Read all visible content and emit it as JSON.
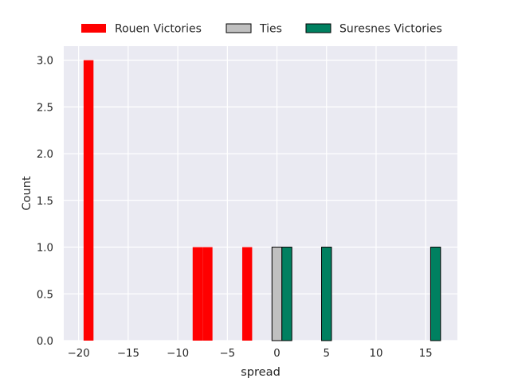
{
  "chart_data": {
    "type": "bar",
    "xlabel": "spread",
    "ylabel": "Count",
    "xlim": [
      -21.5,
      18.2
    ],
    "ylim": [
      0,
      3.15
    ],
    "x_ticks": [
      -20,
      -15,
      -10,
      -5,
      0,
      5,
      10,
      15
    ],
    "x_tick_labels": [
      "−20",
      "−15",
      "−10",
      "−5",
      "0",
      "5",
      "10",
      "15"
    ],
    "y_ticks": [
      0,
      0.5,
      1,
      1.5,
      2,
      2.5,
      3
    ],
    "y_tick_labels": [
      "0.0",
      "0.5",
      "1.0",
      "1.5",
      "2.0",
      "2.5",
      "3.0"
    ],
    "grid": true,
    "legend_position": "top-center",
    "bin_width": 1,
    "series": [
      {
        "name": "Rouen Victories",
        "color": "#ff0000",
        "edge": "none",
        "bars": [
          {
            "start": -19.5,
            "count": 3
          },
          {
            "start": -8.5,
            "count": 1
          },
          {
            "start": -7.5,
            "count": 1
          },
          {
            "start": -3.5,
            "count": 1
          }
        ]
      },
      {
        "name": "Ties",
        "color": "#c0c0c0",
        "edge": "#000000",
        "bars": [
          {
            "start": -0.5,
            "count": 1
          }
        ]
      },
      {
        "name": "Suresnes Victories",
        "color": "#008060",
        "edge": "#000000",
        "bars": [
          {
            "start": 0.5,
            "count": 1
          },
          {
            "start": 4.5,
            "count": 1
          },
          {
            "start": 15.5,
            "count": 1
          }
        ]
      }
    ]
  }
}
